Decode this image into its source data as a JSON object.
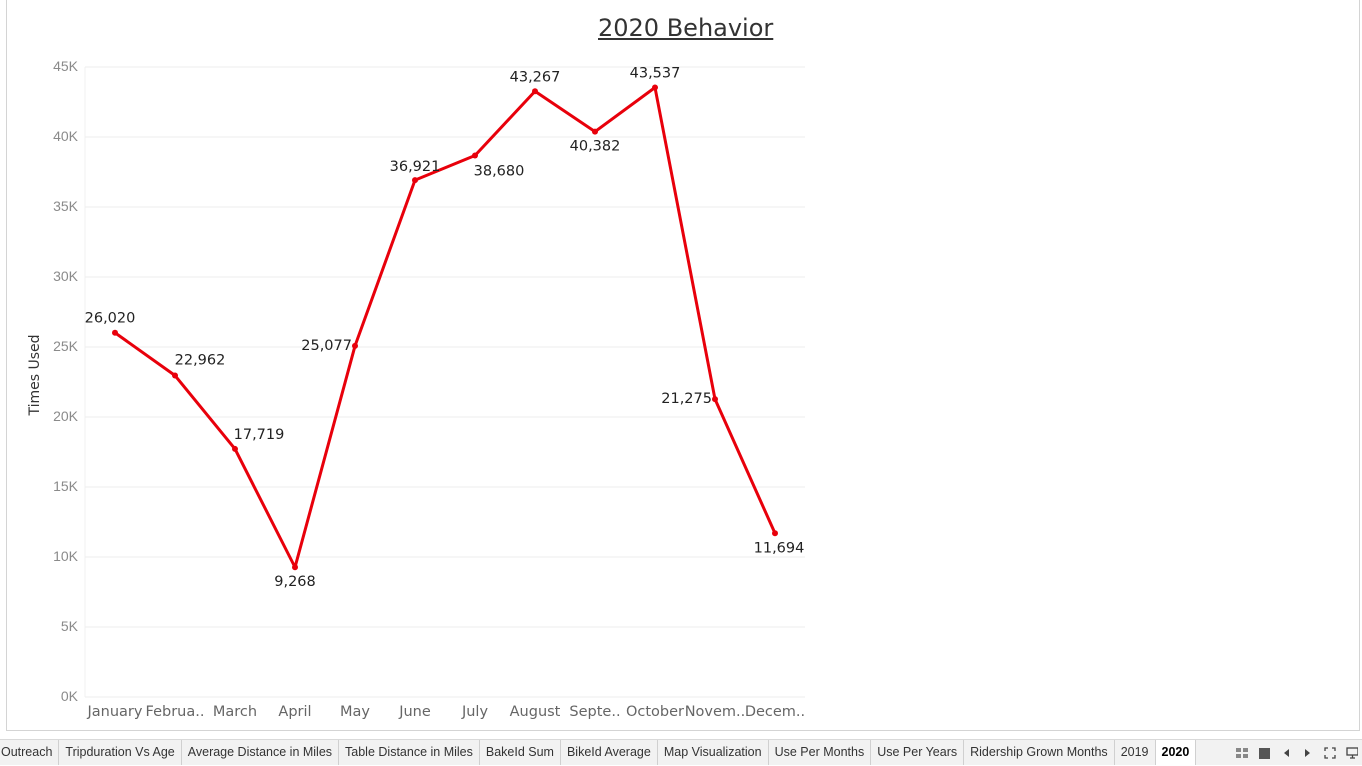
{
  "chart_data": {
    "type": "line",
    "title": "2020 Behavior",
    "xlabel": "",
    "ylabel": "Times Used",
    "categories": [
      "January",
      "Februa..",
      "March",
      "April",
      "May",
      "June",
      "July",
      "August",
      "Septe..",
      "October",
      "Novem..",
      "Decem.."
    ],
    "series": [
      {
        "values": [
          26020,
          22962,
          17719,
          9268,
          25077,
          36921,
          38680,
          43267,
          40382,
          43537,
          21275,
          11694
        ],
        "labels": [
          "26,020",
          "22,962",
          "17,719",
          "9,268",
          "25,077",
          "36,921",
          "38,680",
          "43,267",
          "40,382",
          "43,537",
          "21,275",
          "11,694"
        ],
        "color": "#e8000b"
      }
    ],
    "ylim": [
      0,
      45000
    ],
    "yticks": [
      0,
      5000,
      10000,
      15000,
      20000,
      25000,
      30000,
      35000,
      40000,
      45000
    ],
    "ytick_labels": [
      "0K",
      "5K",
      "10K",
      "15K",
      "20K",
      "25K",
      "30K",
      "35K",
      "40K",
      "45K"
    ],
    "grid": true,
    "legend": "none"
  },
  "tabs": [
    {
      "label": "Outreach",
      "active": false
    },
    {
      "label": "Tripduration Vs Age",
      "active": false
    },
    {
      "label": "Average Distance in Miles",
      "active": false
    },
    {
      "label": "Table Distance in Miles",
      "active": false
    },
    {
      "label": "BakeId Sum",
      "active": false
    },
    {
      "label": "BikeId Average",
      "active": false
    },
    {
      "label": "Map Visualization",
      "active": false
    },
    {
      "label": "Use Per Months",
      "active": false
    },
    {
      "label": "Use Per Years",
      "active": false
    },
    {
      "label": "Ridership Grown Months",
      "active": false
    },
    {
      "label": "2019",
      "active": false
    },
    {
      "label": "2020",
      "active": true
    }
  ],
  "controls": {
    "icons": [
      "grid-view-icon",
      "single-view-icon",
      "prev-icon",
      "next-icon",
      "fullscreen-icon",
      "presentation-icon"
    ]
  }
}
